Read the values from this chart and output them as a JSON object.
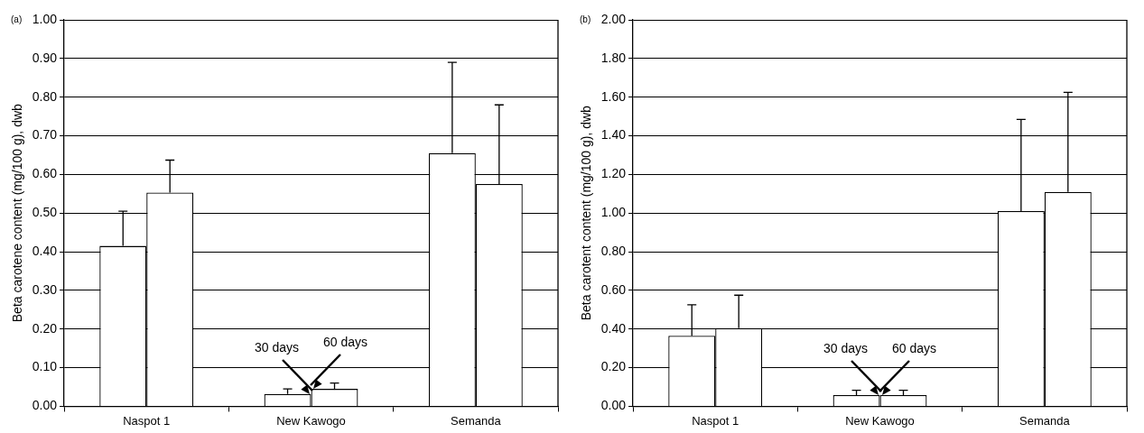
{
  "chart_data": [
    {
      "type": "bar",
      "ylabel": "Beta carotene content (mg/100 g), dwb",
      "categories": [
        "Naspot 1",
        "New Kawogo",
        "Semanda"
      ],
      "series": [
        {
          "color": "#ffffff",
          "values": [
            0.415,
            0.032,
            0.655
          ],
          "errors": [
            [
              0.415,
              0.505
            ],
            [
              0.032,
              0.045
            ],
            [
              0.655,
              0.89
            ]
          ]
        },
        {
          "color": "#ffffff",
          "values": [
            0.553,
            0.045,
            0.575
          ],
          "errors": [
            [
              0.553,
              0.637
            ],
            [
              0.045,
              0.06
            ],
            [
              0.575,
              0.78
            ]
          ]
        }
      ],
      "ylim": [
        0,
        1
      ],
      "yticks": [
        {
          "value": 0,
          "label": "0.00"
        },
        {
          "value": 0.1,
          "label": "0.10"
        },
        {
          "value": 0.2,
          "label": "0.20"
        },
        {
          "value": 0.3,
          "label": "0.30"
        },
        {
          "value": 0.4,
          "label": "0.40"
        },
        {
          "value": 0.5,
          "label": "0.50"
        },
        {
          "value": 0.6,
          "label": "0.60"
        },
        {
          "value": 0.7,
          "label": "0.70"
        },
        {
          "value": 0.8,
          "label": "0.80"
        },
        {
          "value": 0.9,
          "label": "0.90"
        },
        {
          "value": 1,
          "label": "1.00"
        }
      ],
      "grid": "y",
      "legend": false,
      "annotations": [
        "(a)",
        {
          "text": "30 days",
          "x": "New Kawogo",
          "y": 0.032
        },
        {
          "text": "60 days",
          "x": "New Kawogo",
          "y": 0.045
        }
      ]
    },
    {
      "type": "bar",
      "ylabel": "Beta carotent content (mg/100 g), dwb",
      "categories": [
        "Naspot 1",
        "New Kawogo",
        "Semanda"
      ],
      "series": [
        {
          "color": "#ffffff",
          "values": [
            0.365,
            0.058,
            1.01
          ],
          "errors": [
            [
              0.365,
              0.525
            ],
            [
              0.058,
              0.083
            ],
            [
              1.01,
              1.485
            ]
          ]
        },
        {
          "color": "#ffffff",
          "values": [
            0.405,
            0.058,
            1.11
          ],
          "errors": [
            [
              0.405,
              0.575
            ],
            [
              0.058,
              0.083
            ],
            [
              1.11,
              1.625
            ]
          ]
        }
      ],
      "ylim": [
        0,
        2
      ],
      "yticks": [
        {
          "value": 0,
          "label": "0.00"
        },
        {
          "value": 0.2,
          "label": "0.20"
        },
        {
          "value": 0.4,
          "label": "0.40"
        },
        {
          "value": 0.6,
          "label": "0.60"
        },
        {
          "value": 0.8,
          "label": "0.80"
        },
        {
          "value": 1,
          "label": "1.00"
        },
        {
          "value": 1.2,
          "label": "1.20"
        },
        {
          "value": 1.4,
          "label": "1.40"
        },
        {
          "value": 1.6,
          "label": "1.60"
        },
        {
          "value": 1.8,
          "label": "1.80"
        },
        {
          "value": 2,
          "label": "2.00"
        }
      ],
      "grid": "y",
      "legend": false,
      "annotations": [
        "(b)",
        {
          "text": "30 days",
          "x": "New Kawogo",
          "y": 0.058
        },
        {
          "text": "60 days",
          "x": "New Kawogo",
          "y": 0.058
        }
      ]
    }
  ]
}
